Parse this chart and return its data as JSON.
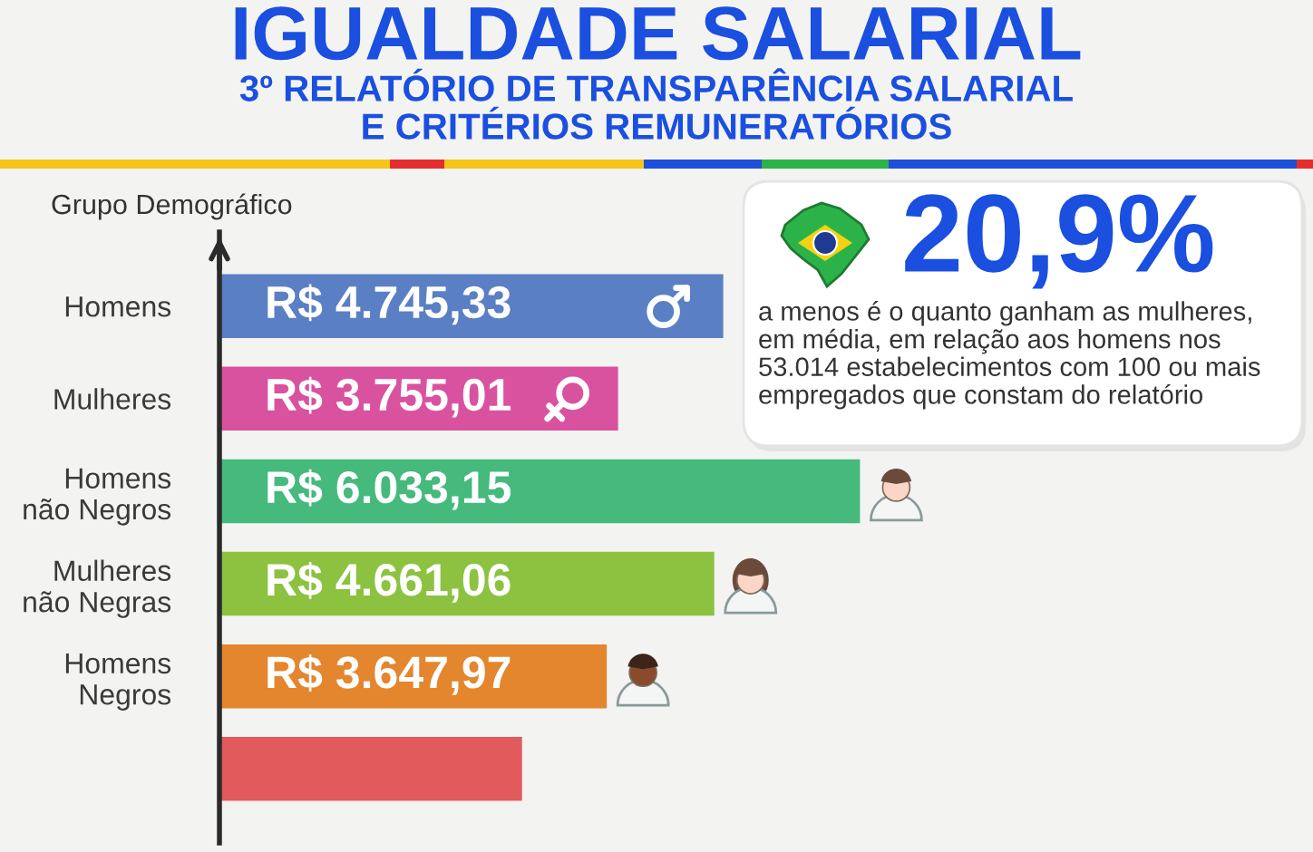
{
  "chart_data": {
    "type": "bar",
    "orientation": "horizontal",
    "title": "IGUALDADE SALARIAL",
    "subtitle": "3º RELATÓRIO DE TRANSPARÊNCIA SALARIAL\nE CRITÉRIOS REMUNERATÓRIOS",
    "ylabel": "Grupo Demográfico",
    "categories": [
      "Homens",
      "Mulheres",
      "Homens\nnão Negros",
      "Mulheres\nnão Negras",
      "Homens\nNegros",
      null
    ],
    "values": [
      4745.33,
      3755.01,
      6033.15,
      4661.06,
      3647.97,
      2850
    ],
    "colors": [
      "#5a7fc4",
      "#d9529f",
      "#46b97d",
      "#8cc23f",
      "#e4862e",
      "#e25a5c"
    ],
    "value_labels": [
      "R$ 4.745,33",
      "R$ 3.755,01",
      "R$ 6.033,15",
      "R$ 4.661,06",
      "R$ 3.647,97",
      null
    ],
    "xlim": [
      0,
      10300
    ],
    "tick_labels": "y",
    "annotations": [
      "20,9%",
      "a menos é o quanto ganham as mulheres,\nem média, em relação aos homens nos\n53.014 estabelecimentos com 100 ou mais\nempregados que constam do relatório"
    ]
  }
}
